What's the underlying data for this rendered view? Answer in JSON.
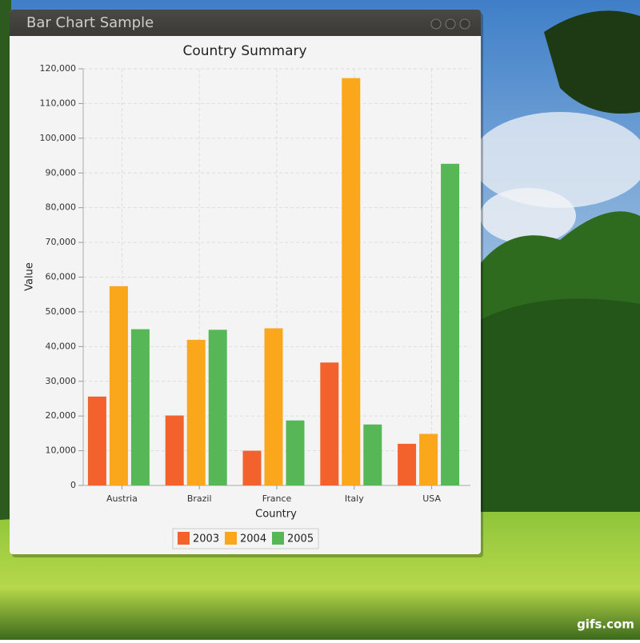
{
  "window": {
    "title": "Bar Chart Sample"
  },
  "chart_data": {
    "type": "bar",
    "title": "Country Summary",
    "x_label": "Country",
    "y_label": "Value",
    "categories": [
      "Austria",
      "Brazil",
      "France",
      "Italy",
      "USA"
    ],
    "series": [
      {
        "name": "2003",
        "color": "#f3622d",
        "values": [
          25601,
          20149,
          10000,
          35407,
          12000
        ]
      },
      {
        "name": "2004",
        "color": "#fba71b",
        "values": [
          57402,
          41941,
          45263,
          117320,
          14845
        ]
      },
      {
        "name": "2005",
        "color": "#57b757",
        "values": [
          45001,
          44836,
          18722,
          17557,
          92634
        ]
      }
    ],
    "ylim": [
      0,
      120000
    ],
    "yticks": [
      0,
      {
        "value": 10000,
        "label": "10,000"
      },
      {
        "value": 20000,
        "label": "20,000"
      },
      {
        "value": 30000,
        "label": "30,000"
      },
      {
        "value": 40000,
        "label": "40,000"
      },
      {
        "value": 50000,
        "label": "50,000"
      },
      {
        "value": 60000,
        "label": "60,000"
      },
      {
        "value": 70000,
        "label": "70,000"
      },
      {
        "value": 80000,
        "label": "80,000"
      },
      {
        "value": 90000,
        "label": "90,000"
      },
      {
        "value": 100000,
        "label": "100,000"
      },
      {
        "value": 110000,
        "label": "110,000"
      },
      {
        "value": 120000,
        "label": "120,000"
      }
    ],
    "grid": true,
    "legend": "bottom"
  },
  "watermark": "gifs.com"
}
